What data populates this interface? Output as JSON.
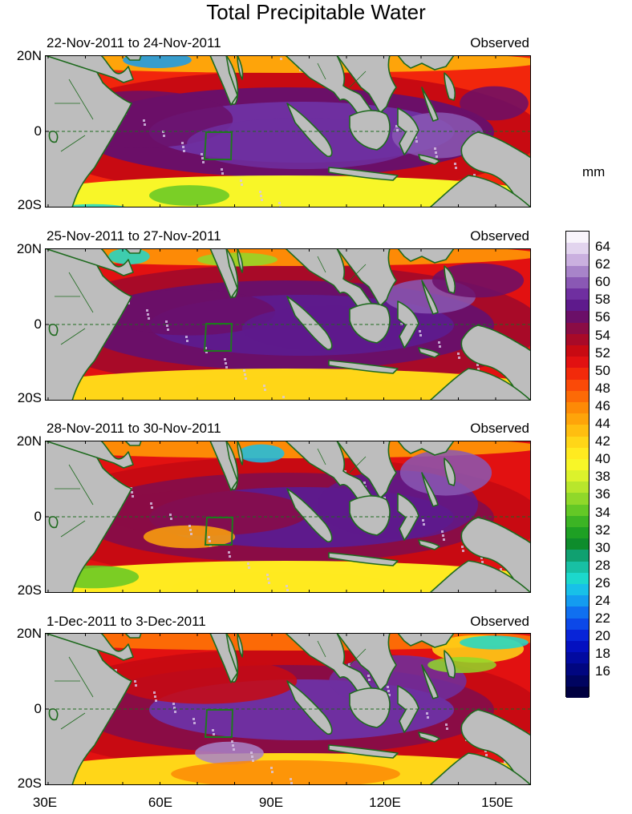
{
  "title": "Total Precipitable Water",
  "panels": [
    {
      "date_range": "22-Nov-2011 to 24-Nov-2011",
      "label": "Observed"
    },
    {
      "date_range": "25-Nov-2011 to 27-Nov-2011",
      "label": "Observed"
    },
    {
      "date_range": "28-Nov-2011 to 30-Nov-2011",
      "label": "Observed"
    },
    {
      "date_range": "1-Dec-2011 to 3-Dec-2011",
      "label": "Observed"
    }
  ],
  "lat_labels": [
    "20N",
    "0",
    "20S"
  ],
  "lon_labels": [
    "30E",
    "60E",
    "90E",
    "120E",
    "150E"
  ],
  "colorbar": {
    "unit": "mm",
    "tick_labels": [
      "64",
      "62",
      "60",
      "58",
      "56",
      "54",
      "52",
      "50",
      "48",
      "46",
      "44",
      "42",
      "40",
      "38",
      "36",
      "34",
      "32",
      "30",
      "28",
      "26",
      "24",
      "22",
      "20",
      "18",
      "16"
    ],
    "colors": [
      "#f8f4fb",
      "#e2d4ee",
      "#cab0df",
      "#a884c9",
      "#8a58b4",
      "#6f2fa0",
      "#5e1a8c",
      "#6b0f68",
      "#8a0c45",
      "#a80a28",
      "#c80a12",
      "#e21111",
      "#f22a0a",
      "#fa4a08",
      "#fc6a06",
      "#fd8a06",
      "#fea40a",
      "#ffbe10",
      "#ffd618",
      "#ffea20",
      "#f8f628",
      "#dcf22c",
      "#b8e62c",
      "#90d82a",
      "#64c826",
      "#3cb424",
      "#1ea024",
      "#0e8c2c",
      "#10a070",
      "#18c0a4",
      "#1cd8cc",
      "#18c0e8",
      "#149cf0",
      "#1070f0",
      "#0c48e8",
      "#0824d8",
      "#0410c0",
      "#020aa0",
      "#010680",
      "#000460",
      "#000040"
    ]
  },
  "colors": {
    "land": "#bdbdbd",
    "coast": "#1e6a1e",
    "box": "#1e7a1e"
  }
}
